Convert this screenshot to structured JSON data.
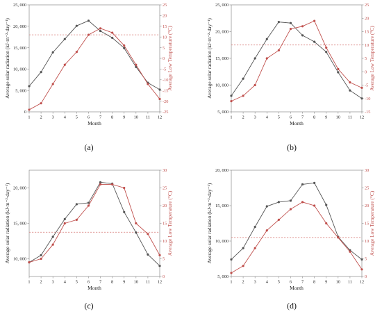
{
  "chart_data": [
    {
      "type": "line",
      "panel_label": "(a)",
      "xlabel": "Month",
      "ylabel": "Average solar radiation (kJ·m⁻²·day⁻¹)",
      "ylabel_right": "Average Low Temperature (°C)",
      "x": [
        1,
        2,
        3,
        4,
        5,
        6,
        7,
        8,
        9,
        10,
        11,
        12
      ],
      "xlim": [
        1,
        12
      ],
      "ylim": [
        0,
        25000
      ],
      "yticks": [
        0,
        5000,
        10000,
        15000,
        20000,
        25000
      ],
      "ytick_labels": [
        "0",
        "5, 000",
        "10, 000",
        "15, 000",
        "20, 000",
        "25, 000"
      ],
      "y2lim": [
        -25,
        25
      ],
      "y2ticks": [
        -25,
        -20,
        -15,
        -10,
        -5,
        0,
        5,
        10,
        15,
        20,
        25
      ],
      "y2ref": 11,
      "series": [
        {
          "axis": "left",
          "color": "#555555",
          "values": [
            6000,
            9300,
            13900,
            17000,
            20100,
            21300,
            18900,
            17300,
            14900,
            10500,
            6800,
            5200
          ]
        },
        {
          "axis": "right",
          "color": "#c0504d",
          "values": [
            -24,
            -21,
            -12,
            -3,
            3,
            11,
            14,
            12,
            6,
            -3,
            -12,
            -19
          ]
        }
      ]
    },
    {
      "type": "line",
      "panel_label": "(b)",
      "xlabel": "Month",
      "ylabel": "Average solar radiation (kJ·m⁻²·day⁻¹)",
      "ylabel_right": "Average Low Temperature (°C)",
      "x": [
        1,
        2,
        3,
        4,
        5,
        6,
        7,
        8,
        9,
        10,
        11,
        12
      ],
      "xlim": [
        1,
        12
      ],
      "ylim": [
        5000,
        25000
      ],
      "yticks": [
        5000,
        10000,
        15000,
        20000,
        25000
      ],
      "ytick_labels": [
        "5, 000",
        "10, 000",
        "15, 000",
        "20, 000",
        "25, 000"
      ],
      "y2lim": [
        -15,
        25
      ],
      "y2ticks": [
        -15,
        -10,
        -5,
        0,
        5,
        10,
        15,
        20,
        25
      ],
      "y2ref": 10,
      "series": [
        {
          "axis": "left",
          "color": "#555555",
          "values": [
            8000,
            11200,
            15000,
            18600,
            21800,
            21600,
            19300,
            18100,
            16200,
            12400,
            9000,
            7500
          ]
        },
        {
          "axis": "right",
          "color": "#c0504d",
          "values": [
            -11,
            -9,
            -5,
            5,
            8,
            16,
            17,
            19,
            9,
            1,
            -4,
            -6
          ]
        }
      ]
    },
    {
      "type": "line",
      "panel_label": "(c)",
      "xlabel": "Month",
      "ylabel": "Average solar radiation (kJ·m⁻²·day⁻¹)",
      "ylabel_right": "Average Low Temperature (°C)",
      "x": [
        1,
        2,
        3,
        4,
        5,
        6,
        7,
        8,
        9,
        10,
        11,
        12
      ],
      "xlim": [
        1,
        12
      ],
      "ylim": [
        7500,
        22500
      ],
      "yticks": [
        10000,
        15000,
        20000
      ],
      "ytick_labels": [
        "10, 000",
        "15, 000",
        "20, 000"
      ],
      "y2lim": [
        0,
        30
      ],
      "y2ticks": [
        0,
        5,
        10,
        15,
        20,
        25,
        30
      ],
      "y2ref": 12.5,
      "series": [
        {
          "axis": "left",
          "color": "#555555",
          "values": [
            9500,
            10500,
            13100,
            15600,
            17700,
            17900,
            20800,
            20600,
            16600,
            13700,
            10600,
            9000
          ]
        },
        {
          "axis": "right",
          "color": "#c0504d",
          "values": [
            4,
            5,
            9,
            15,
            16,
            20,
            26,
            26,
            25,
            15,
            12,
            6
          ]
        }
      ]
    },
    {
      "type": "line",
      "panel_label": "(d)",
      "xlabel": "Month",
      "ylabel": "Average solar radiation (kJ·m⁻²·day⁻¹)",
      "ylabel_right": "Average Low Temperature (°C)",
      "x": [
        1,
        2,
        3,
        4,
        5,
        6,
        7,
        8,
        9,
        10,
        11,
        12
      ],
      "xlim": [
        1,
        12
      ],
      "ylim": [
        5000,
        20000
      ],
      "yticks": [
        5000,
        10000,
        15000,
        20000
      ],
      "ytick_labels": [
        "5, 000",
        "10, 000",
        "15, 000",
        "20, 000"
      ],
      "y2lim": [
        0,
        30
      ],
      "y2ticks": [
        0,
        5,
        10,
        15,
        20,
        25,
        30
      ],
      "y2ref": 11,
      "series": [
        {
          "axis": "left",
          "color": "#555555",
          "values": [
            7400,
            9000,
            12000,
            14900,
            15500,
            15700,
            18000,
            18200,
            15100,
            10600,
            8700,
            7400
          ]
        },
        {
          "axis": "right",
          "color": "#c0504d",
          "values": [
            1,
            3,
            8,
            13,
            16,
            19,
            21,
            20,
            15,
            11,
            7,
            2
          ]
        }
      ]
    }
  ]
}
